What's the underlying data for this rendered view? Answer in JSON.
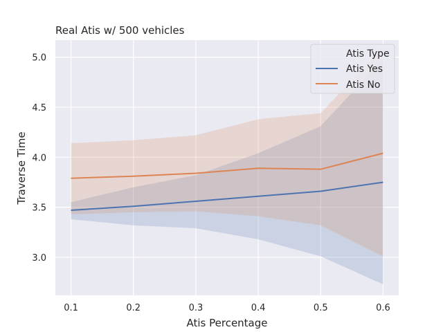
{
  "chart_data": {
    "type": "line",
    "title": "Real Atis w/ 500 vehicles",
    "xlabel": "Atis Percentage",
    "ylabel": "Traverse Time",
    "x": [
      0.1,
      0.2,
      0.3,
      0.4,
      0.5,
      0.6
    ],
    "x_tick_labels": [
      "0.1",
      "0.2",
      "0.3",
      "0.4",
      "0.5",
      "0.6"
    ],
    "y_ticks": [
      3.0,
      3.5,
      4.0,
      4.5,
      5.0
    ],
    "y_tick_labels": [
      "3.0",
      "3.5",
      "4.0",
      "4.5",
      "5.0"
    ],
    "xlim": [
      0.075,
      0.625
    ],
    "ylim": [
      2.62,
      5.17
    ],
    "grid": true,
    "legend": {
      "title": "Atis Type",
      "placement": "top-right"
    },
    "series": [
      {
        "name": "Atis Yes",
        "color": "#4c72b0",
        "values": [
          3.47,
          3.51,
          3.56,
          3.61,
          3.66,
          3.75
        ],
        "ci_low": [
          3.38,
          3.32,
          3.29,
          3.18,
          3.01,
          2.73
        ],
        "ci_high": [
          3.55,
          3.7,
          3.82,
          4.04,
          4.31,
          4.98
        ]
      },
      {
        "name": "Atis No",
        "color": "#dd8452",
        "values": [
          3.79,
          3.81,
          3.84,
          3.89,
          3.88,
          4.04
        ],
        "ci_low": [
          3.43,
          3.45,
          3.46,
          3.41,
          3.32,
          3.01
        ],
        "ci_high": [
          4.14,
          4.17,
          4.22,
          4.38,
          4.44,
          5.1
        ]
      }
    ]
  }
}
